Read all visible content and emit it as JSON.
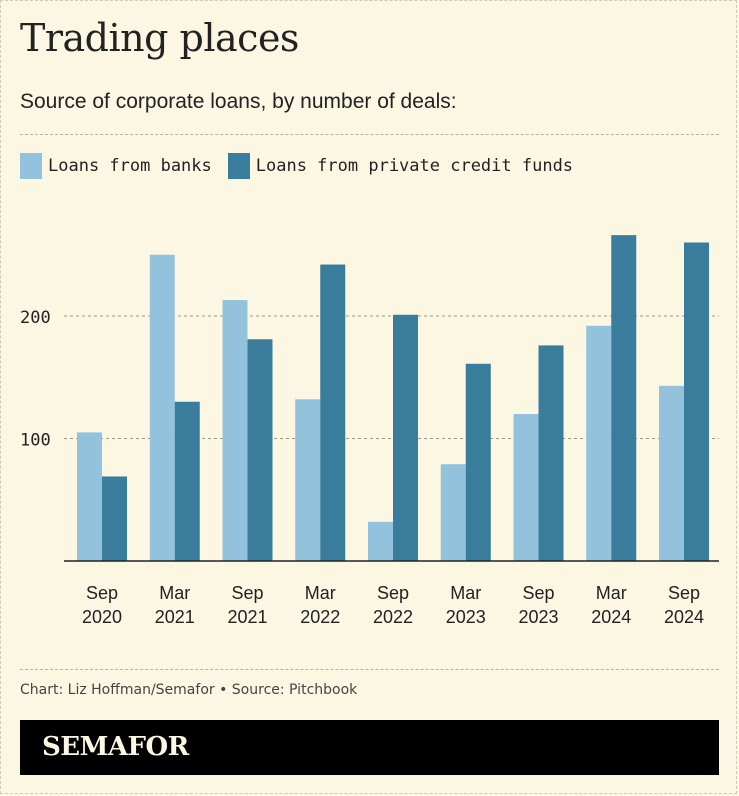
{
  "title": "Trading places",
  "subtitle": "Source of corporate loans, by number of deals:",
  "credit": "Chart: Liz Hoffman/Semafor • Source: Pitchbook",
  "brand": "SEMAFOR",
  "colors": {
    "background": "#fbf7e3",
    "banks": "#93c3dc",
    "private_credit": "#3a7c9b"
  },
  "chart_data": {
    "type": "bar",
    "categories": [
      [
        "Sep",
        "2020"
      ],
      [
        "Mar",
        "2021"
      ],
      [
        "Sep",
        "2021"
      ],
      [
        "Mar",
        "2022"
      ],
      [
        "Sep",
        "2022"
      ],
      [
        "Mar",
        "2023"
      ],
      [
        "Sep",
        "2023"
      ],
      [
        "Mar",
        "2024"
      ],
      [
        "Sep",
        "2024"
      ]
    ],
    "series": [
      {
        "name": "Loans from banks",
        "color": "#93c3dc",
        "values": [
          105,
          250,
          213,
          132,
          32,
          79,
          120,
          192,
          143
        ]
      },
      {
        "name": "Loans from private credit funds",
        "color": "#3a7c9b",
        "values": [
          69,
          130,
          181,
          242,
          201,
          161,
          176,
          266,
          260
        ]
      }
    ],
    "yticks": [
      100,
      200
    ],
    "ylim": [
      0,
      270
    ],
    "grid": true,
    "legend": "top-left"
  }
}
